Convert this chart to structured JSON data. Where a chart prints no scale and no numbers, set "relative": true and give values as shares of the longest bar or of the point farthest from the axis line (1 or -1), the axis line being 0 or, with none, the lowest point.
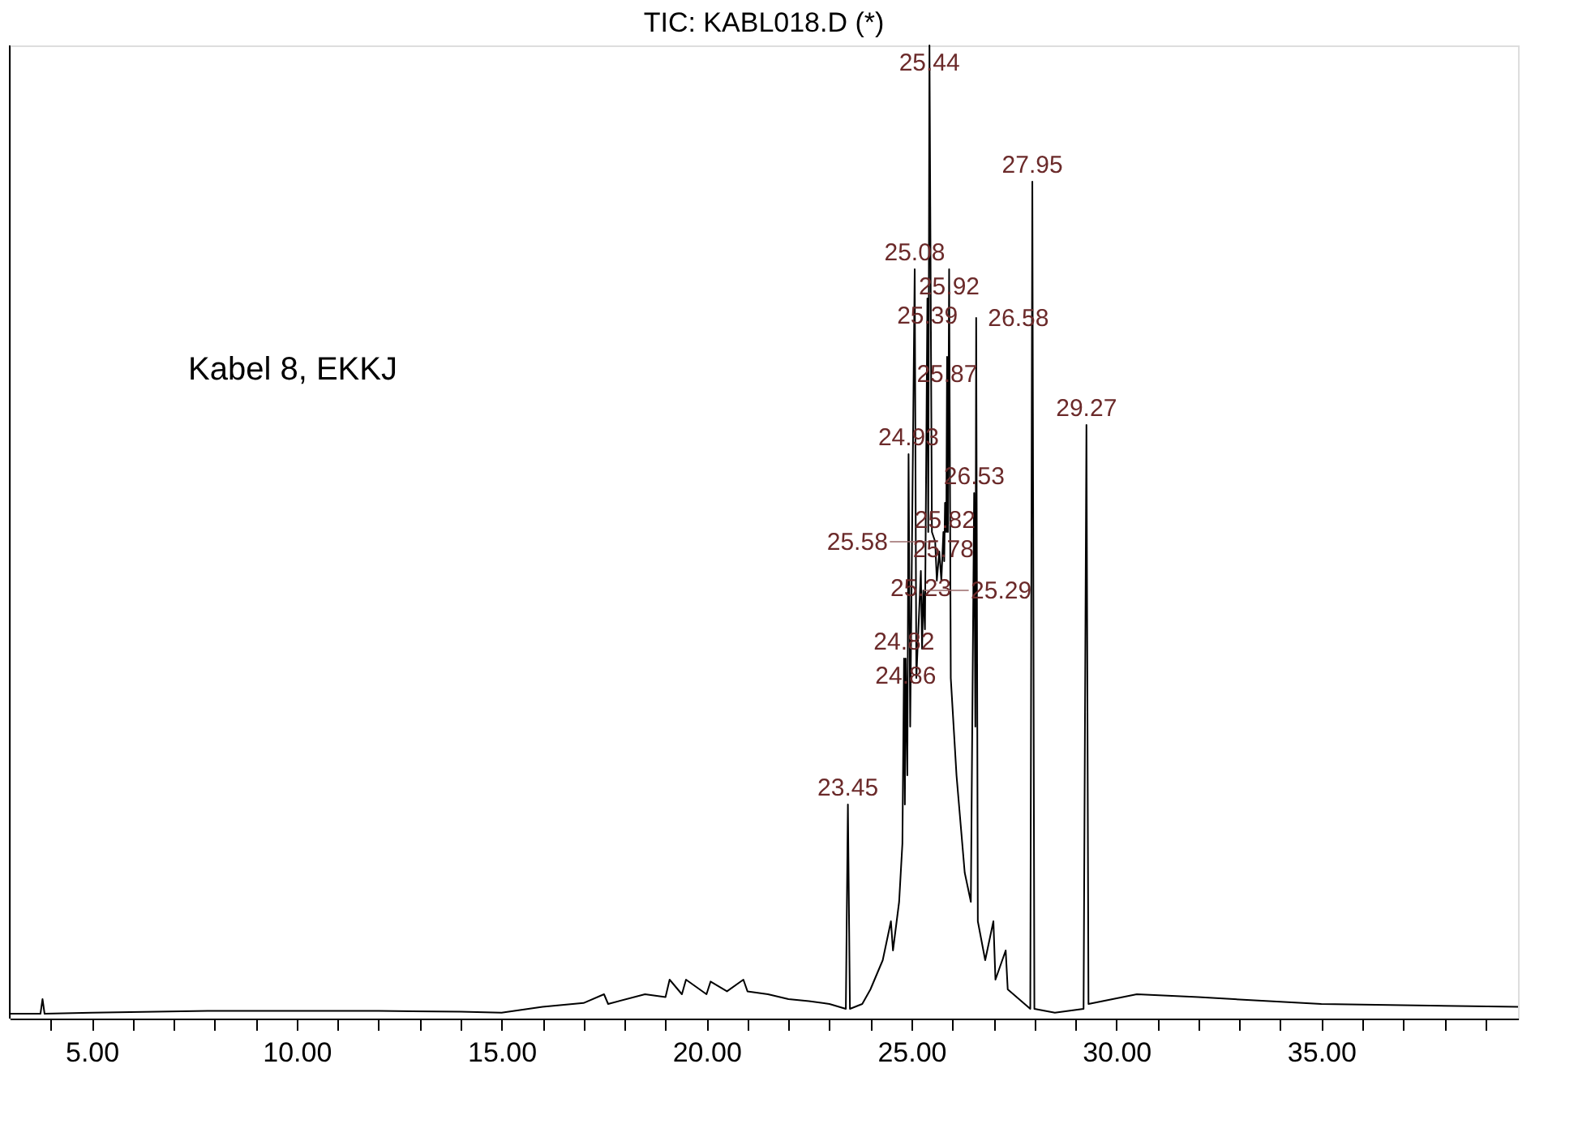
{
  "chart_data": {
    "type": "line",
    "title": "TIC: KABL018.D (*)",
    "relative": true,
    "tick_labels": "x",
    "grid": false,
    "marker": "none",
    "line_style": "solid",
    "xlim": [
      3,
      39.8
    ],
    "xticks": [
      {
        "value": 4,
        "label": null
      },
      {
        "value": 5,
        "label": "5.00"
      },
      {
        "value": 6,
        "label": null
      },
      {
        "value": 7,
        "label": null
      },
      {
        "value": 8,
        "label": null
      },
      {
        "value": 9,
        "label": null
      },
      {
        "value": 10,
        "label": "10.00"
      },
      {
        "value": 11,
        "label": null
      },
      {
        "value": 12,
        "label": null
      },
      {
        "value": 13,
        "label": null
      },
      {
        "value": 14,
        "label": null
      },
      {
        "value": 15,
        "label": "15.00"
      },
      {
        "value": 16,
        "label": null
      },
      {
        "value": 17,
        "label": null
      },
      {
        "value": 18,
        "label": null
      },
      {
        "value": 19,
        "label": null
      },
      {
        "value": 20,
        "label": "20.00"
      },
      {
        "value": 21,
        "label": null
      },
      {
        "value": 22,
        "label": null
      },
      {
        "value": 23,
        "label": null
      },
      {
        "value": 24,
        "label": null
      },
      {
        "value": 25,
        "label": "25.00"
      },
      {
        "value": 26,
        "label": null
      },
      {
        "value": 27,
        "label": null
      },
      {
        "value": 28,
        "label": null
      },
      {
        "value": 29,
        "label": null
      },
      {
        "value": 30,
        "label": "30.00"
      },
      {
        "value": 31,
        "label": null
      },
      {
        "value": 32,
        "label": null
      },
      {
        "value": 33,
        "label": null
      },
      {
        "value": 34,
        "label": null
      },
      {
        "value": 35,
        "label": "35.00"
      },
      {
        "value": 36,
        "label": null
      },
      {
        "value": 37,
        "label": null
      },
      {
        "value": 38,
        "label": null
      },
      {
        "value": 39,
        "label": null
      }
    ],
    "series": [
      {
        "color": "#000000",
        "x": [
          3.0,
          3.5,
          3.75,
          3.8,
          3.85,
          5,
          8,
          10,
          12,
          14,
          15,
          16,
          17,
          17.5,
          17.6,
          18.5,
          19,
          19.1,
          19.4,
          19.5,
          20,
          20.1,
          20.5,
          20.9,
          21,
          21.5,
          22,
          22.5,
          23,
          23.4,
          23.45,
          23.5,
          23.8,
          24.0,
          24.3,
          24.5,
          24.55,
          24.7,
          24.78,
          24.82,
          24.84,
          24.86,
          24.9,
          24.93,
          24.97,
          25.08,
          25.12,
          25.23,
          25.26,
          25.29,
          25.33,
          25.39,
          25.41,
          25.44,
          25.5,
          25.58,
          25.62,
          25.68,
          25.73,
          25.78,
          25.8,
          25.82,
          25.85,
          25.87,
          25.89,
          25.92,
          25.96,
          26.1,
          26.3,
          26.45,
          26.53,
          26.56,
          26.58,
          26.62,
          26.8,
          27.0,
          27.05,
          27.3,
          27.35,
          27.9,
          27.95,
          28.0,
          28.5,
          29.2,
          29.27,
          29.32,
          30.5,
          32,
          35,
          39.8
        ],
        "values": [
          0.005,
          0.005,
          0.005,
          0.02,
          0.005,
          0.006,
          0.008,
          0.008,
          0.008,
          0.007,
          0.006,
          0.012,
          0.016,
          0.025,
          0.015,
          0.025,
          0.022,
          0.04,
          0.025,
          0.04,
          0.025,
          0.038,
          0.028,
          0.04,
          0.028,
          0.025,
          0.02,
          0.018,
          0.015,
          0.01,
          0.22,
          0.01,
          0.015,
          0.03,
          0.06,
          0.1,
          0.07,
          0.12,
          0.18,
          0.37,
          0.22,
          0.37,
          0.25,
          0.58,
          0.3,
          0.77,
          0.35,
          0.46,
          0.38,
          0.44,
          0.4,
          0.74,
          0.5,
          1.0,
          0.5,
          0.49,
          0.45,
          0.48,
          0.45,
          0.5,
          0.47,
          0.53,
          0.5,
          0.68,
          0.5,
          0.77,
          0.35,
          0.25,
          0.15,
          0.12,
          0.54,
          0.3,
          0.72,
          0.1,
          0.06,
          0.1,
          0.04,
          0.07,
          0.03,
          0.01,
          0.86,
          0.01,
          0.006,
          0.01,
          0.61,
          0.015,
          0.025,
          0.022,
          0.015,
          0.012
        ]
      }
    ],
    "annotations": [
      {
        "text": "23.45",
        "x": 23.45,
        "y": 0.22
      },
      {
        "text": "24.82",
        "x": 24.82,
        "y": 0.37
      },
      {
        "text": "24.86",
        "x": 24.86,
        "y": 0.37
      },
      {
        "text": "24.93",
        "x": 24.93,
        "y": 0.58
      },
      {
        "text": "25.08",
        "x": 25.08,
        "y": 0.77
      },
      {
        "text": "25.23",
        "x": 25.23,
        "y": 0.46
      },
      {
        "text": "25.29",
        "x": 25.29,
        "y": 0.44
      },
      {
        "text": "25.39",
        "x": 25.39,
        "y": 0.74
      },
      {
        "text": "25.44",
        "x": 25.44,
        "y": 1.0
      },
      {
        "text": "25.58",
        "x": 25.58,
        "y": 0.49
      },
      {
        "text": "25.78",
        "x": 25.78,
        "y": 0.5
      },
      {
        "text": "25.82",
        "x": 25.82,
        "y": 0.53
      },
      {
        "text": "25.87",
        "x": 25.87,
        "y": 0.68
      },
      {
        "text": "25.92",
        "x": 25.92,
        "y": 0.77
      },
      {
        "text": "26.53",
        "x": 26.53,
        "y": 0.54
      },
      {
        "text": "26.58",
        "x": 26.58,
        "y": 0.72
      },
      {
        "text": "27.95",
        "x": 27.95,
        "y": 0.86
      },
      {
        "text": "29.27",
        "x": 29.27,
        "y": 0.61
      },
      "Kabel 8, EKKJ"
    ]
  }
}
